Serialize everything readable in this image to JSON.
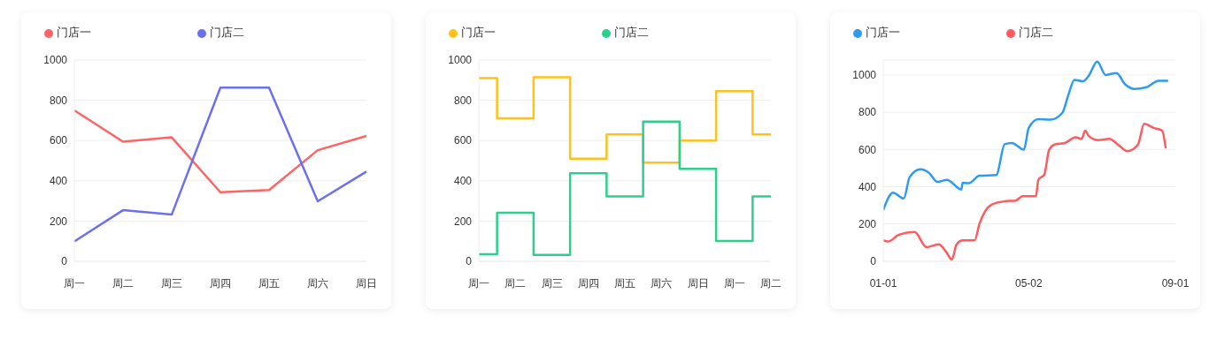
{
  "chart_data": [
    {
      "type": "line",
      "categories": [
        "周一",
        "周二",
        "周三",
        "周四",
        "周五",
        "周六",
        "周日"
      ],
      "series": [
        {
          "name": "门店一",
          "color": "#ff6464",
          "values": [
            750,
            594,
            616,
            343,
            354,
            552,
            623
          ]
        },
        {
          "name": "门店二",
          "color": "#6b6ff0",
          "values": [
            99,
            254,
            232,
            863,
            863,
            298,
            446
          ]
        }
      ],
      "ylim": [
        0,
        1000
      ],
      "yticks": [
        0,
        200,
        400,
        600,
        800,
        1000
      ],
      "grid": "y",
      "legend": "top left"
    },
    {
      "type": "step",
      "categories": [
        "周一",
        "周二",
        "周三",
        "周四",
        "周五",
        "周六",
        "周日",
        "周一",
        "周二"
      ],
      "series": [
        {
          "name": "门店一",
          "color": "#ffc21a",
          "values": [
            910,
            710,
            915,
            510,
            630,
            490,
            600,
            845,
            630
          ]
        },
        {
          "name": "门店二",
          "color": "#2ecf8e",
          "values": [
            35,
            241,
            32,
            437,
            322,
            694,
            459,
            101,
            322
          ]
        }
      ],
      "ylim": [
        0,
        1000
      ],
      "yticks": [
        0,
        200,
        400,
        600,
        800,
        1000
      ],
      "grid": "y",
      "legend": "top left"
    },
    {
      "type": "line",
      "series": [
        {
          "name": "门店一",
          "color": "#2d9cf0",
          "x": [
            "--01-01",
            "--01-09",
            "--01-18",
            "--01-23",
            "--02-01",
            "--02-08",
            "--02-15",
            "--02-23",
            "--03-07",
            "--03-08",
            "--03-13",
            "--03-22",
            "--04-05",
            "--04-12",
            "--04-18",
            "--04-28",
            "--05-02",
            "--05-10",
            "--05-20",
            "--05-30",
            "--06-04",
            "--06-09",
            "--06-16",
            "--06-21",
            "--06-28",
            "--07-05",
            "--07-14",
            "--07-21",
            "--07-29",
            "--08-08",
            "--08-18",
            "--08-26"
          ],
          "values": [
            275,
            368,
            337,
            453,
            494,
            475,
            426,
            437,
            385,
            422,
            419,
            459,
            463,
            628,
            635,
            599,
            716,
            763,
            760,
            797,
            893,
            974,
            966,
            996,
            1072,
            1000,
            1010,
            951,
            925,
            934,
            969,
            969
          ]
        },
        {
          "name": "门店二",
          "color": "#ff5a5f",
          "x": [
            "--01-01",
            "--01-05",
            "--01-14",
            "--01-27",
            "--02-06",
            "--02-16",
            "--02-22",
            "--02-27",
            "--03-03",
            "--03-08",
            "--03-18",
            "--03-22",
            "--04-01",
            "--04-12",
            "--04-21",
            "--04-27",
            "--05-08",
            "--05-10",
            "--05-15",
            "--05-19",
            "--05-24",
            "--06-01",
            "--06-10",
            "--06-15",
            "--06-18",
            "--06-21",
            "--06-29",
            "--07-08",
            "--07-15",
            "--07-23",
            "--08-01",
            "--08-06",
            "--08-14",
            "--08-21",
            "--08-24"
          ],
          "values": [
            113,
            106,
            143,
            157,
            76,
            91,
            54,
            10,
            91,
            113,
            113,
            201,
            304,
            322,
            326,
            349,
            349,
            437,
            466,
            599,
            628,
            635,
            665,
            657,
            701,
            672,
            650,
            657,
            628,
            591,
            628,
            738,
            716,
            701,
            606
          ]
        }
      ],
      "xlim": [
        "--01-01",
        "--09-01"
      ],
      "xticks": [
        {
          "value": "--01-01",
          "label": "01-01"
        },
        {
          "value": "--05-02",
          "label": "05-02"
        },
        {
          "value": "--09-01",
          "label": "09-01"
        }
      ],
      "ylim": [
        0,
        1080
      ],
      "yticks": [
        0,
        200,
        400,
        600,
        800,
        1000
      ],
      "grid": "y",
      "legend": "top left"
    }
  ]
}
